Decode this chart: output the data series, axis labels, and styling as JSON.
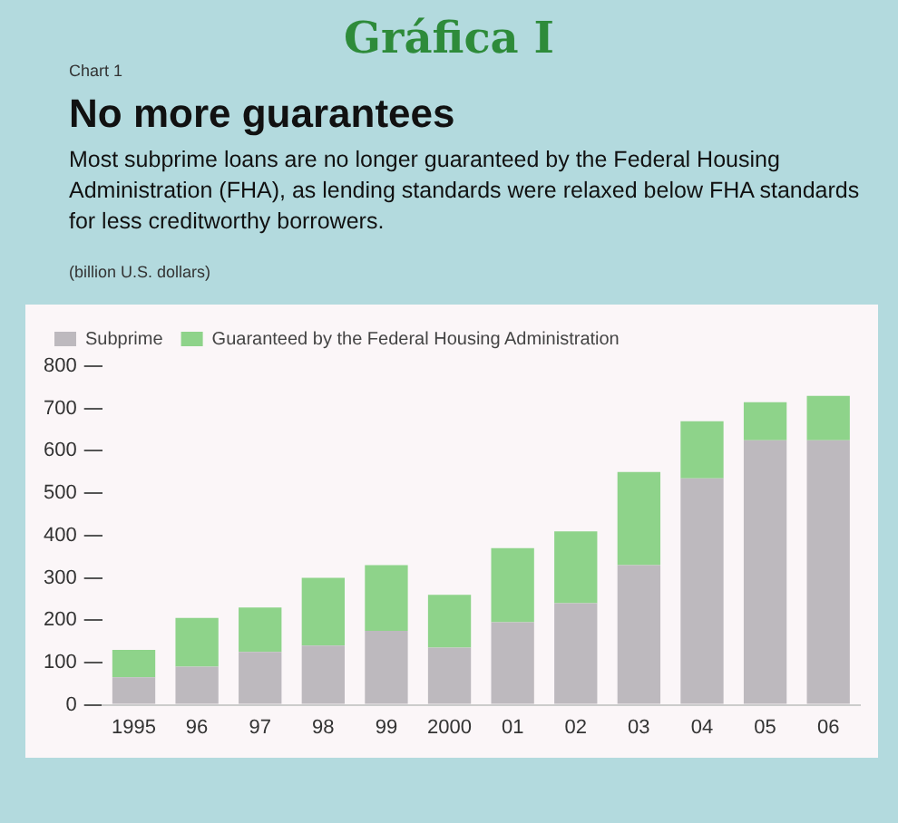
{
  "chart_data": {
    "type": "bar",
    "stacked": true,
    "title": "No more guarantees",
    "subtitle": "Most subprime loans are no longer guaranteed by the Federal Housing Administration (FHA), as lending standards were relaxed below FHA standards for less creditworthy borrowers.",
    "ylabel": "(billion U.S. dollars)",
    "annotations": [
      "Gráfica I",
      "Chart 1"
    ],
    "categories": [
      "1995",
      "96",
      "97",
      "98",
      "99",
      "2000",
      "01",
      "02",
      "03",
      "04",
      "05",
      "06"
    ],
    "series": [
      {
        "name": "Subprime",
        "color": "#bdb9be",
        "values": [
          65,
          90,
          125,
          140,
          175,
          135,
          195,
          240,
          330,
          535,
          625,
          625
        ]
      },
      {
        "name": "Guaranteed by the Federal Housing Administration",
        "color": "#8ed38a",
        "values": [
          65,
          115,
          105,
          160,
          155,
          125,
          175,
          170,
          220,
          135,
          90,
          105
        ]
      }
    ],
    "ylim": [
      0,
      800
    ],
    "yticks": [
      0,
      100,
      200,
      300,
      400,
      500,
      600,
      700,
      800
    ],
    "grid": false,
    "legend": "top left"
  }
}
